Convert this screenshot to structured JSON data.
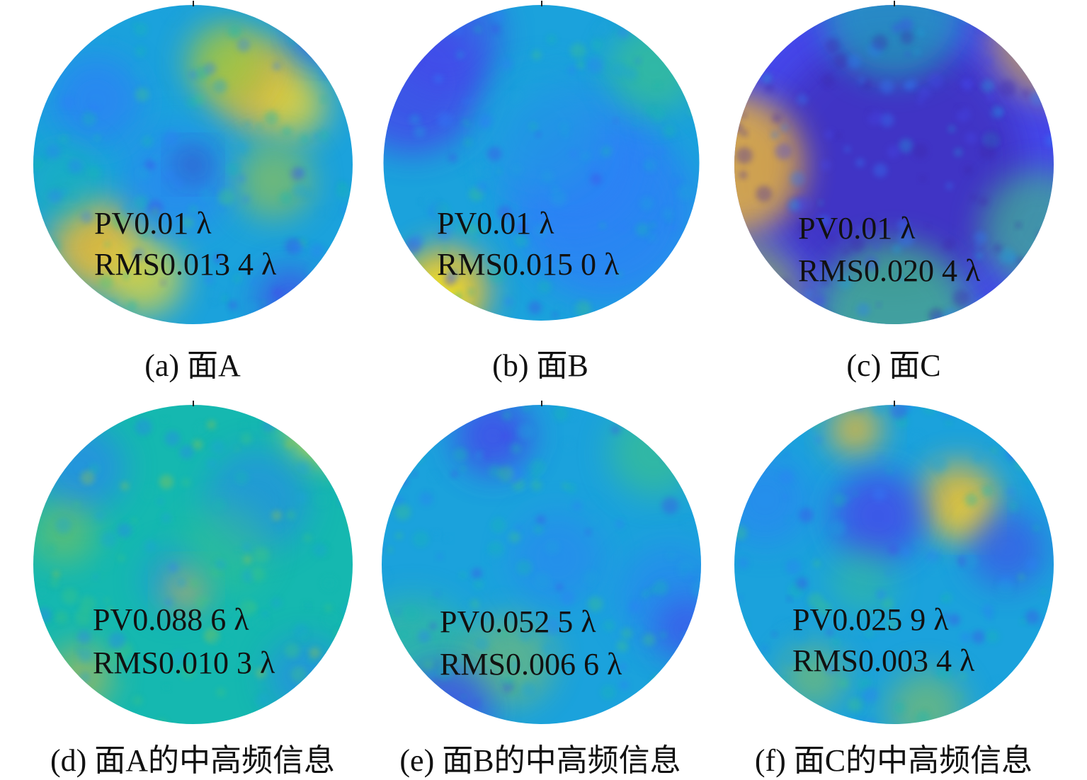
{
  "colors": {
    "colormap": [
      "#3e26a8",
      "#4547ea",
      "#2d7ff8",
      "#1ba2dc",
      "#15b8b0",
      "#3fc680",
      "#a1c63e",
      "#f2ba2f",
      "#fadd25",
      "#f9fb15"
    ]
  },
  "panels": [
    {
      "id": "a",
      "pv": "PV0.01 λ",
      "rms": "RMS0.013 4 λ",
      "caption": "(a) 面A",
      "pattern": "surface-a"
    },
    {
      "id": "b",
      "pv": "PV0.01 λ",
      "rms": "RMS0.015 0 λ",
      "caption": "(b) 面B",
      "pattern": "surface-b"
    },
    {
      "id": "c",
      "pv": "PV0.01 λ",
      "rms": "RMS0.020 4 λ",
      "caption": "(c) 面C",
      "pattern": "surface-c"
    },
    {
      "id": "d",
      "pv": "PV0.088 6 λ",
      "rms": "RMS0.010 3 λ",
      "caption": "(d) 面A的中高频信息",
      "pattern": "surface-a-midhigh"
    },
    {
      "id": "e",
      "pv": "PV0.052 5 λ",
      "rms": "RMS0.006 6 λ",
      "caption": "(e) 面B的中高频信息",
      "pattern": "surface-b-midhigh"
    },
    {
      "id": "f",
      "pv": "PV0.025 9 λ",
      "rms": "RMS0.003 4 λ",
      "caption": "(f) 面C的中高频信息",
      "pattern": "surface-c-midhigh"
    }
  ]
}
